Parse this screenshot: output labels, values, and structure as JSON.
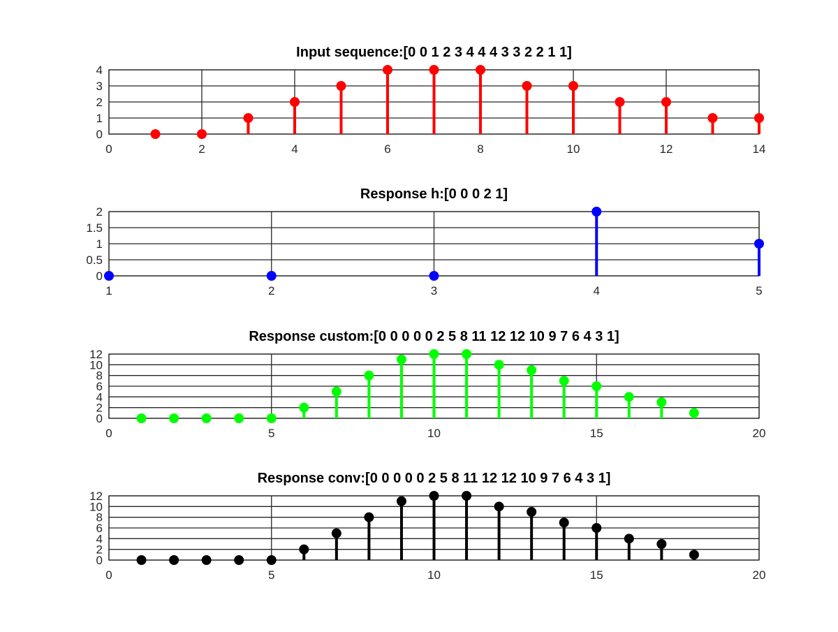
{
  "chart_data": [
    {
      "type": "stem",
      "title": "Input sequence:[0  0  1  2  3  4  4  4  3  3  2  2  1  1]",
      "xlabel": "",
      "ylabel": "",
      "xlim": [
        0,
        14
      ],
      "ylim": [
        0,
        4
      ],
      "xticks": [
        0,
        2,
        4,
        6,
        8,
        10,
        12,
        14
      ],
      "yticks": [
        0,
        1,
        2,
        3,
        4
      ],
      "grid": true,
      "color": "#ff0000",
      "x": [
        1,
        2,
        3,
        4,
        5,
        6,
        7,
        8,
        9,
        10,
        11,
        12,
        13,
        14
      ],
      "values": [
        0,
        0,
        1,
        2,
        3,
        4,
        4,
        4,
        3,
        3,
        2,
        2,
        1,
        1
      ]
    },
    {
      "type": "stem",
      "title": "Response h:[0  0  0  2  1]",
      "xlabel": "",
      "ylabel": "",
      "xlim": [
        1,
        5
      ],
      "ylim": [
        0,
        2
      ],
      "xticks": [
        1,
        2,
        3,
        4,
        5
      ],
      "yticks": [
        0,
        0.5,
        1,
        1.5,
        2
      ],
      "grid": true,
      "color": "#0000ff",
      "x": [
        1,
        2,
        3,
        4,
        5
      ],
      "values": [
        0,
        0,
        0,
        2,
        1
      ]
    },
    {
      "type": "stem",
      "title": "Response custom:[0   0   0   0   0   2   5   8   11   12   12   10   9   7   6   4   3   1]",
      "xlabel": "",
      "ylabel": "",
      "xlim": [
        0,
        20
      ],
      "ylim": [
        0,
        12
      ],
      "xticks": [
        0,
        5,
        10,
        15,
        20
      ],
      "yticks": [
        0,
        2,
        4,
        6,
        8,
        10,
        12
      ],
      "grid": true,
      "color": "#00ff00",
      "x": [
        1,
        2,
        3,
        4,
        5,
        6,
        7,
        8,
        9,
        10,
        11,
        12,
        13,
        14,
        15,
        16,
        17,
        18
      ],
      "values": [
        0,
        0,
        0,
        0,
        0,
        2,
        5,
        8,
        11,
        12,
        12,
        10,
        9,
        7,
        6,
        4,
        3,
        1
      ]
    },
    {
      "type": "stem",
      "title": "Response conv:[0   0   0   0   0   2   5   8   11   12   12   10   9   7   6   4   3   1]",
      "xlabel": "",
      "ylabel": "",
      "xlim": [
        0,
        20
      ],
      "ylim": [
        0,
        12
      ],
      "xticks": [
        0,
        5,
        10,
        15,
        20
      ],
      "yticks": [
        0,
        2,
        4,
        6,
        8,
        10,
        12
      ],
      "grid": true,
      "color": "#000000",
      "x": [
        1,
        2,
        3,
        4,
        5,
        6,
        7,
        8,
        9,
        10,
        11,
        12,
        13,
        14,
        15,
        16,
        17,
        18
      ],
      "values": [
        0,
        0,
        0,
        0,
        0,
        2,
        5,
        8,
        11,
        12,
        12,
        10,
        9,
        7,
        6,
        4,
        3,
        1
      ]
    }
  ]
}
